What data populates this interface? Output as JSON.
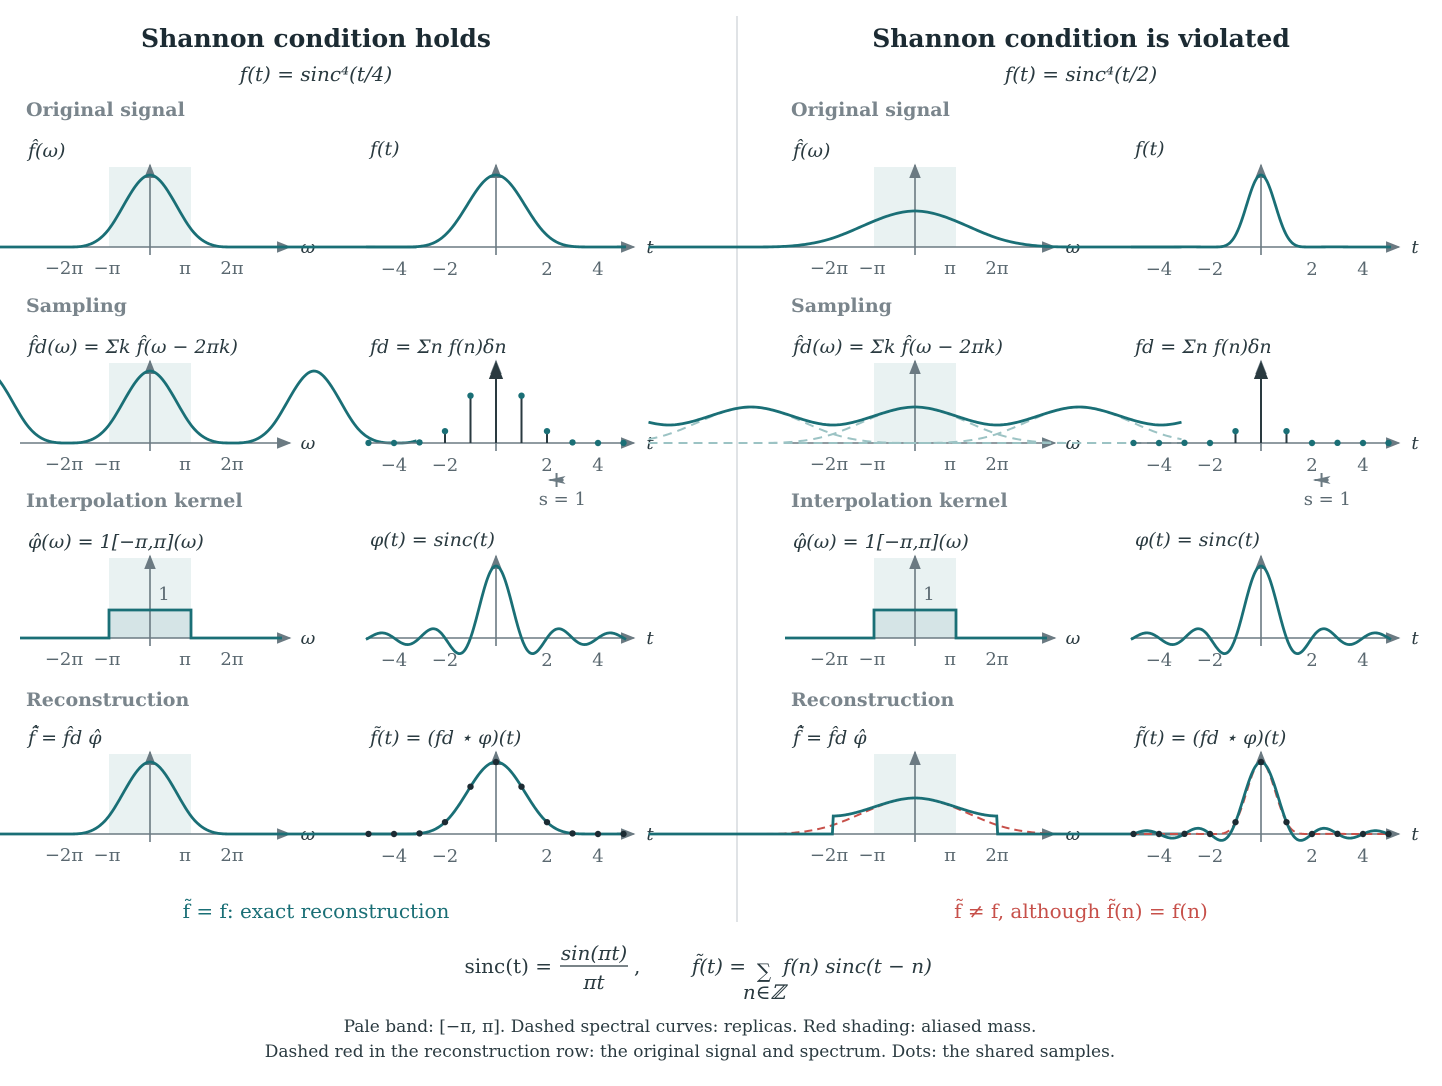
{
  "colors": {
    "curve": "#1a6f76",
    "band": "#e9f2f2",
    "axis": "#6b7a82",
    "alias": "#c7504a",
    "replica": "#9cc3c4"
  },
  "left": {
    "title": "Shannon condition holds",
    "formula": "f(t) = sinc⁴(t/4)",
    "verdict": "f̃ = f: exact reconstruction",
    "freq_scale": 0.25
  },
  "right": {
    "title": "Shannon condition is violated",
    "formula": "f(t) = sinc⁴(t/2)",
    "verdict": "f̃ ≠ f, although f̃(n) = f(n)",
    "freq_scale": 0.5
  },
  "sections": {
    "original": "Original signal",
    "sampling": "Sampling",
    "kernel": "Interpolation kernel",
    "reconstruction": "Reconstruction"
  },
  "panel_labels": {
    "fhat": "f̂(ω)",
    "f": "f(t)",
    "fdhat": "f̂d(ω) = Σk f̂(ω − 2πk)",
    "fd": "fd = Σn f(n)δn",
    "phihat": "φ̂(ω) = 1[−π,π](ω)",
    "phi": "φ(t) = sinc(t)",
    "ftildehat": "f̃̂ = f̂d φ̂",
    "ftilde": "f̃(t) = (fd ⋆ φ)(t)"
  },
  "freq_ticks": [
    "−2π",
    "−π",
    "π",
    "2π"
  ],
  "time_ticks": [
    "−4",
    "−2",
    "2",
    "4"
  ],
  "axis_labels": {
    "omega": "ω",
    "t": "t"
  },
  "kernel_height_label": "1",
  "sample_spacing": "s = 1",
  "bottom_formula": {
    "sinc_lhs": "sinc(t) =",
    "sinc_num": "sin(πt)",
    "sinc_den": "πt",
    "comma": ",",
    "recon_lhs": "f̃(t) =",
    "sum_sign": "∑",
    "sum_index": "n∈ℤ",
    "recon_rhs": "f(n) sinc(t − n)"
  },
  "notes": [
    "Pale band: [−π, π]. Dashed spectral curves: replicas. Red shading: aliased mass.",
    "Dashed red in the reconstruction row: the original signal and spectrum. Dots: the shared samples."
  ]
}
